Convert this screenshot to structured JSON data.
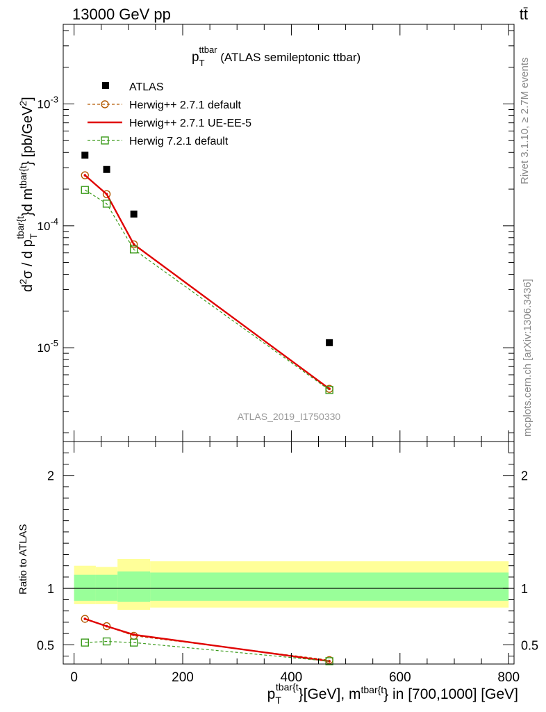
{
  "header": {
    "left": "13000 GeV pp",
    "right": "tt̄"
  },
  "side_labels": {
    "rivet": "Rivet 3.1.10, ≥ 2.7M events",
    "mcplots": "mcplots.cern.ch [arXiv:1306.3436]"
  },
  "chart_data": [
    {
      "type": "scatter",
      "title_main": "p",
      "title_sub": "T",
      "title_sup": "ttbar",
      "title_rest": " (ATLAS semileptonic ttbar)",
      "watermark": "ATLAS_2019_I1750330",
      "yscale": "log",
      "xlim": [
        -20,
        810
      ],
      "ylim": [
        1.7e-06,
        0.0045
      ],
      "ytick_labels": [
        "10^-5",
        "10^-4",
        "10^-3"
      ],
      "ylabel": {
        "d2": "d",
        "sup2": "2",
        "sigma": "σ / d p",
        "subT": "T",
        "supTbar": "tbar{t",
        "mid": "}d m",
        "supTbar2": "tbar{t",
        "end": "} [pb/GeV",
        "supGeV": "2",
        "close": "]"
      },
      "legend": {
        "placement": "top-left",
        "entries": [
          {
            "name": "ATLAS",
            "marker": "filled-square",
            "color": "#000000"
          },
          {
            "name": "Herwig++ 2.7.1 default",
            "marker": "open-circle",
            "line": "dashed",
            "color": "#b35900"
          },
          {
            "name": "Herwig++ 2.7.1 UE-EE-5",
            "marker": "none",
            "line": "solid",
            "color": "#e00000"
          },
          {
            "name": "Herwig 7.2.1 default",
            "marker": "open-square",
            "line": "dashed",
            "color": "#3a9a1a"
          }
        ]
      },
      "x": [
        20,
        60,
        110,
        470
      ],
      "series": [
        {
          "name": "ATLAS",
          "values": [
            0.00038,
            0.00029,
            0.000125,
            1.1e-05
          ]
        },
        {
          "name": "Herwig++ 2.7.1 default",
          "values": [
            0.00026,
            0.000182,
            7.05e-05,
            4.6e-06
          ]
        },
        {
          "name": "Herwig++ 2.7.1 UE-EE-5",
          "values": [
            0.00026,
            0.000182,
            7.05e-05,
            4.6e-06
          ]
        },
        {
          "name": "Herwig 7.2.1 default",
          "values": [
            0.000197,
            0.000152,
            6.4e-05,
            4.5e-06
          ]
        }
      ]
    },
    {
      "type": "line",
      "ylabel": "Ratio to ATLAS",
      "xlabel": {
        "p": "p",
        "subT": "T",
        "supTbar": "tbar{t",
        "rest": "}[GeV], m",
        "supTbar2": "tbar{t",
        "end": "} in [700,1000] [GeV]"
      },
      "xlim": [
        -20,
        810
      ],
      "ylim": [
        0.33,
        2.3
      ],
      "xticks": [
        0,
        200,
        400,
        600,
        800
      ],
      "ytick_labels": [
        "0.5",
        "1",
        "2"
      ],
      "yticks": [
        0.5,
        1,
        2
      ],
      "bands": [
        {
          "x": [
            0,
            40
          ],
          "green": [
            0.89,
            1.12
          ],
          "yellow": [
            0.86,
            1.2
          ]
        },
        {
          "x": [
            40,
            80
          ],
          "green": [
            0.89,
            1.12
          ],
          "yellow": [
            0.86,
            1.19
          ]
        },
        {
          "x": [
            80,
            140
          ],
          "green": [
            0.88,
            1.15
          ],
          "yellow": [
            0.81,
            1.26
          ]
        },
        {
          "x": [
            140,
            800
          ],
          "green": [
            0.89,
            1.14
          ],
          "yellow": [
            0.83,
            1.24
          ]
        }
      ],
      "x": [
        20,
        60,
        110,
        470
      ],
      "series": [
        {
          "name": "Herwig++ 2.7.1 default",
          "values": [
            0.73,
            0.665,
            0.58,
            0.365
          ]
        },
        {
          "name": "Herwig++ 2.7.1 UE-EE-5",
          "values": [
            0.73,
            0.665,
            0.59,
            0.355
          ]
        },
        {
          "name": "Herwig 7.2.1 default",
          "values": [
            0.52,
            0.53,
            0.52,
            0.355
          ]
        }
      ]
    }
  ]
}
